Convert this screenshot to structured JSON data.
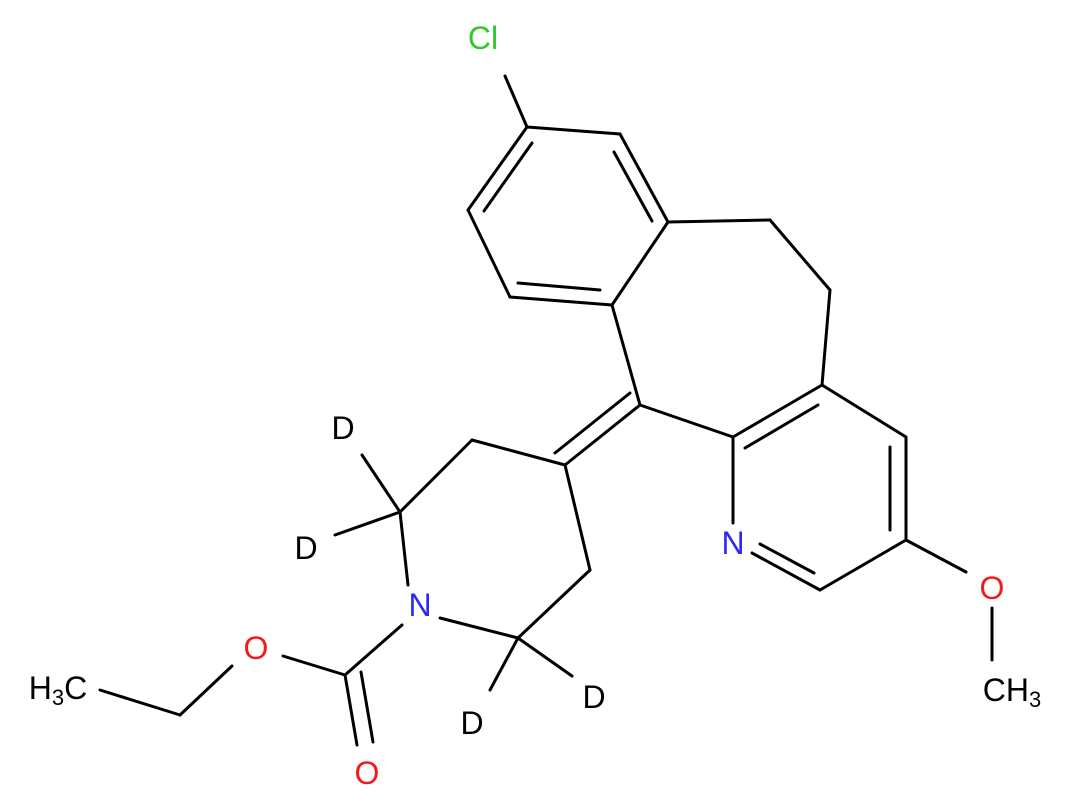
{
  "atoms": {
    "chlorine": {
      "text": "Cl"
    },
    "pyridine_n": {
      "text": "N"
    },
    "methoxy_o": {
      "text": "O"
    },
    "methoxy_ch3": {
      "text": "CH",
      "sub": "3"
    },
    "piperidine_n": {
      "text": "N"
    },
    "ester_o": {
      "text": "O"
    },
    "carbonyl_o": {
      "text": "O"
    },
    "ethyl_ch3": {
      "text": "H",
      "sub": "3",
      "after": "C"
    },
    "deuterium_1": {
      "text": "D"
    },
    "deuterium_2": {
      "text": "D"
    },
    "deuterium_3": {
      "text": "D"
    },
    "deuterium_4": {
      "text": "D"
    }
  }
}
